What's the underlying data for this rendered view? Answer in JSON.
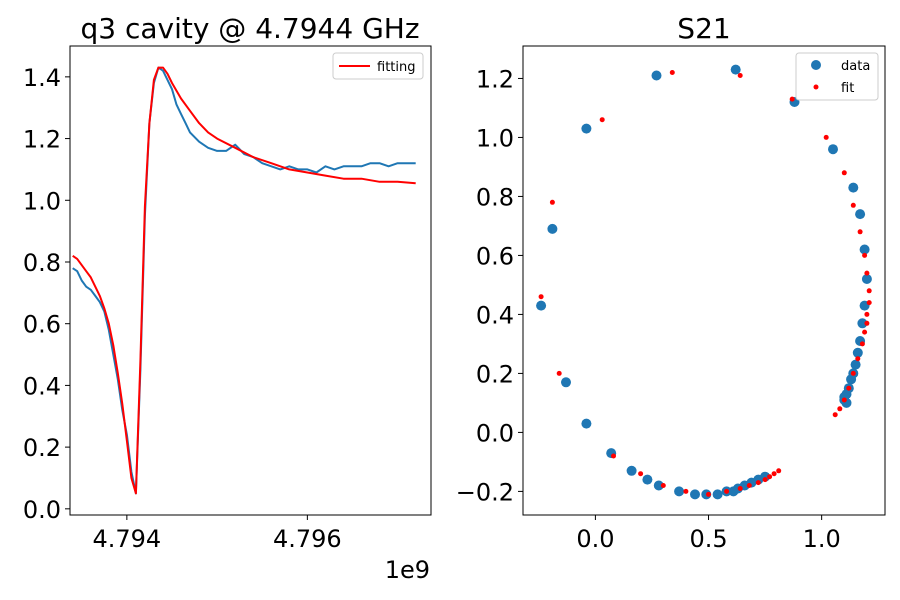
{
  "chart_data": [
    {
      "type": "line",
      "title": "q3 cavity @ 4.7944 GHz",
      "xlim": [
        4793370000.0,
        4797370000.0
      ],
      "ylim": [
        -0.02,
        1.5
      ],
      "x_ticks": [
        4794000000.0,
        4796000000.0
      ],
      "x_tick_labels": [
        "4.794",
        "4.796"
      ],
      "x_offset_label": "1e9",
      "y_ticks": [
        0.0,
        0.2,
        0.4,
        0.6,
        0.8,
        1.0,
        1.2,
        1.4
      ],
      "y_tick_labels": [
        "0.0",
        "0.2",
        "0.4",
        "0.6",
        "0.8",
        "1.0",
        "1.2",
        "1.4"
      ],
      "legend_position": "top-right",
      "series": [
        {
          "name": "",
          "color": "#1f77b4",
          "x": [
            4793400000.0,
            4793450000.0,
            4793500000.0,
            4793550000.0,
            4793600000.0,
            4793650000.0,
            4793700000.0,
            4793750000.0,
            4793800000.0,
            4793850000.0,
            4793900000.0,
            4793950000.0,
            4794000000.0,
            4794050000.0,
            4794100000.0,
            4794150000.0,
            4794200000.0,
            4794250000.0,
            4794300000.0,
            4794350000.0,
            4794400000.0,
            4794450000.0,
            4794500000.0,
            4794550000.0,
            4794600000.0,
            4794650000.0,
            4794700000.0,
            4794800000.0,
            4794900000.0,
            4795000000.0,
            4795100000.0,
            4795200000.0,
            4795300000.0,
            4795400000.0,
            4795500000.0,
            4795600000.0,
            4795700000.0,
            4795800000.0,
            4795900000.0,
            4796000000.0,
            4796100000.0,
            4796200000.0,
            4796300000.0,
            4796400000.0,
            4796500000.0,
            4796600000.0,
            4796700000.0,
            4796800000.0,
            4796900000.0,
            4797000000.0,
            4797100000.0,
            4797200000.0
          ],
          "y": [
            0.78,
            0.77,
            0.74,
            0.72,
            0.71,
            0.69,
            0.67,
            0.64,
            0.58,
            0.5,
            0.42,
            0.32,
            0.24,
            0.12,
            0.05,
            0.45,
            0.95,
            1.25,
            1.38,
            1.43,
            1.42,
            1.39,
            1.36,
            1.31,
            1.28,
            1.25,
            1.22,
            1.19,
            1.17,
            1.16,
            1.16,
            1.18,
            1.15,
            1.14,
            1.12,
            1.11,
            1.1,
            1.11,
            1.1,
            1.1,
            1.09,
            1.11,
            1.1,
            1.11,
            1.11,
            1.11,
            1.12,
            1.12,
            1.11,
            1.12,
            1.12,
            1.12
          ]
        },
        {
          "name": "fitting",
          "color": "#ff0000",
          "x": [
            4793400000.0,
            4793450000.0,
            4793500000.0,
            4793550000.0,
            4793600000.0,
            4793650000.0,
            4793700000.0,
            4793750000.0,
            4793800000.0,
            4793850000.0,
            4793900000.0,
            4793950000.0,
            4794000000.0,
            4794050000.0,
            4794100000.0,
            4794150000.0,
            4794200000.0,
            4794250000.0,
            4794300000.0,
            4794350000.0,
            4794400000.0,
            4794450000.0,
            4794500000.0,
            4794600000.0,
            4794700000.0,
            4794800000.0,
            4794900000.0,
            4795000000.0,
            4795200000.0,
            4795400000.0,
            4795600000.0,
            4795800000.0,
            4796000000.0,
            4796200000.0,
            4796400000.0,
            4796600000.0,
            4796800000.0,
            4797000000.0,
            4797200000.0
          ],
          "y": [
            0.82,
            0.81,
            0.79,
            0.77,
            0.75,
            0.72,
            0.69,
            0.65,
            0.6,
            0.53,
            0.44,
            0.34,
            0.22,
            0.1,
            0.05,
            0.48,
            0.98,
            1.25,
            1.39,
            1.43,
            1.43,
            1.41,
            1.38,
            1.33,
            1.29,
            1.25,
            1.22,
            1.2,
            1.17,
            1.14,
            1.12,
            1.1,
            1.09,
            1.08,
            1.07,
            1.07,
            1.06,
            1.06,
            1.055
          ]
        }
      ]
    },
    {
      "type": "scatter",
      "title": "S21",
      "xlim": [
        -0.32,
        1.28
      ],
      "ylim": [
        -0.28,
        1.31
      ],
      "x_ticks": [
        0.0,
        0.5,
        1.0
      ],
      "x_tick_labels": [
        "0.0",
        "0.5",
        "1.0"
      ],
      "y_ticks": [
        -0.2,
        0.0,
        0.2,
        0.4,
        0.6,
        0.8,
        1.0,
        1.2
      ],
      "y_tick_labels": [
        "−0.2",
        "0.0",
        "0.2",
        "0.4",
        "0.6",
        "0.8",
        "1.0",
        "1.2"
      ],
      "legend_position": "top-right",
      "series": [
        {
          "name": "data",
          "color": "#1f77b4",
          "marker_size": "large",
          "x": [
            0.27,
            0.62,
            0.88,
            1.05,
            1.14,
            1.17,
            1.19,
            1.2,
            1.19,
            1.18,
            1.17,
            1.16,
            1.15,
            1.14,
            1.13,
            1.12,
            1.11,
            1.1,
            1.1,
            1.11,
            -0.04,
            -0.19,
            -0.24,
            -0.13,
            -0.04,
            0.07,
            0.16,
            0.23,
            0.28,
            0.37,
            0.44,
            0.49,
            0.54,
            0.58,
            0.61,
            0.63,
            0.66,
            0.69,
            0.72,
            0.75
          ],
          "y": [
            1.21,
            1.23,
            1.12,
            0.96,
            0.83,
            0.74,
            0.62,
            0.52,
            0.43,
            0.37,
            0.31,
            0.27,
            0.23,
            0.2,
            0.18,
            0.15,
            0.13,
            0.12,
            0.11,
            0.1,
            1.03,
            0.69,
            0.43,
            0.17,
            0.03,
            -0.07,
            -0.13,
            -0.16,
            -0.18,
            -0.2,
            -0.21,
            -0.21,
            -0.21,
            -0.2,
            -0.2,
            -0.19,
            -0.18,
            -0.17,
            -0.16,
            -0.15
          ]
        },
        {
          "name": "fit",
          "color": "#ff0000",
          "marker_size": "small",
          "x": [
            0.03,
            0.34,
            0.64,
            0.87,
            1.02,
            1.1,
            1.14,
            1.17,
            1.19,
            1.2,
            1.21,
            1.21,
            1.2,
            1.2,
            1.19,
            1.18,
            1.16,
            1.14,
            1.12,
            1.1,
            1.08,
            1.06,
            -0.19,
            -0.24,
            -0.16,
            0.08,
            0.2,
            0.3,
            0.4,
            0.5,
            0.58,
            0.64,
            0.68,
            0.72,
            0.75,
            0.77,
            0.79,
            0.81
          ],
          "y": [
            1.06,
            1.22,
            1.21,
            1.13,
            1.0,
            0.88,
            0.77,
            0.68,
            0.6,
            0.54,
            0.48,
            0.44,
            0.4,
            0.37,
            0.34,
            0.3,
            0.25,
            0.2,
            0.15,
            0.11,
            0.08,
            0.06,
            0.78,
            0.46,
            0.2,
            -0.08,
            -0.14,
            -0.18,
            -0.2,
            -0.21,
            -0.2,
            -0.19,
            -0.18,
            -0.17,
            -0.16,
            -0.15,
            -0.14,
            -0.13
          ]
        }
      ]
    }
  ]
}
